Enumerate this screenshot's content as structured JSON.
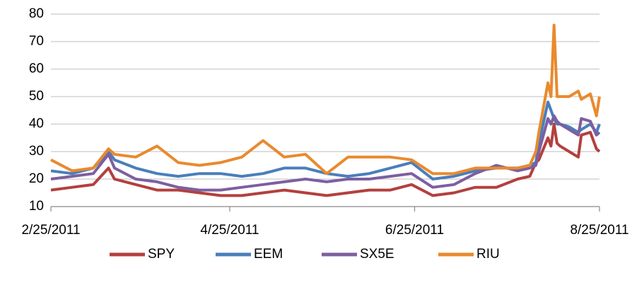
{
  "chart_data": {
    "type": "line",
    "x": [
      "2/25/2011",
      "3/4/2011",
      "3/11/2011",
      "3/16/2011",
      "3/18/2011",
      "3/25/2011",
      "4/1/2011",
      "4/8/2011",
      "4/15/2011",
      "4/22/2011",
      "4/29/2011",
      "5/6/2011",
      "5/13/2011",
      "5/20/2011",
      "5/27/2011",
      "6/3/2011",
      "6/10/2011",
      "6/17/2011",
      "6/24/2011",
      "7/1/2011",
      "7/8/2011",
      "7/15/2011",
      "7/22/2011",
      "7/29/2011",
      "8/2/2011",
      "8/4/2011",
      "8/5/2011",
      "8/8/2011",
      "8/9/2011",
      "8/10/2011",
      "8/11/2011",
      "8/12/2011",
      "8/15/2011",
      "8/18/2011",
      "8/19/2011",
      "8/22/2011",
      "8/24/2011",
      "8/25/2011"
    ],
    "series": [
      {
        "name": "SPY",
        "color": "#b3403e",
        "values": [
          16,
          17,
          18,
          24,
          20,
          18,
          16,
          16,
          15,
          14,
          14,
          15,
          16,
          15,
          14,
          15,
          16,
          16,
          18,
          14,
          15,
          17,
          17,
          20,
          21,
          26,
          27,
          35,
          32,
          40,
          33,
          32,
          30,
          28,
          36,
          37,
          31,
          30
        ]
      },
      {
        "name": "EEM",
        "color": "#4a7ebb",
        "values": [
          23,
          22,
          24,
          30,
          27,
          24,
          22,
          21,
          22,
          22,
          21,
          22,
          24,
          24,
          22,
          21,
          22,
          24,
          26,
          20,
          21,
          23,
          24,
          24,
          25,
          26,
          33,
          48,
          45,
          42,
          40,
          40,
          39,
          37,
          38,
          40,
          37,
          40
        ]
      },
      {
        "name": "SX5E",
        "color": "#7d5fa0",
        "values": [
          20,
          21,
          22,
          29,
          24,
          20,
          19,
          17,
          16,
          16,
          17,
          18,
          19,
          20,
          19,
          20,
          20,
          21,
          22,
          17,
          18,
          22,
          25,
          23,
          24,
          25,
          30,
          42,
          40,
          43,
          41,
          40,
          38,
          36,
          42,
          41,
          36,
          37
        ]
      },
      {
        "name": "RIU",
        "color": "#e98a2e",
        "values": [
          27,
          23,
          24,
          31,
          29,
          28,
          32,
          26,
          25,
          26,
          28,
          34,
          28,
          29,
          22,
          28,
          28,
          28,
          27,
          22,
          22,
          24,
          24,
          24,
          25,
          30,
          37,
          55,
          50,
          76,
          50,
          50,
          50,
          52,
          49,
          51,
          43,
          50
        ]
      }
    ],
    "xlim": [
      "2/25/2011",
      "8/25/2011"
    ],
    "xticks": [
      "2/25/2011",
      "4/25/2011",
      "6/25/2011",
      "8/25/2011"
    ],
    "ylim": [
      10,
      80
    ],
    "yticks": [
      10,
      20,
      30,
      40,
      50,
      60,
      70,
      80
    ],
    "grid": true,
    "legend": "bottom"
  }
}
